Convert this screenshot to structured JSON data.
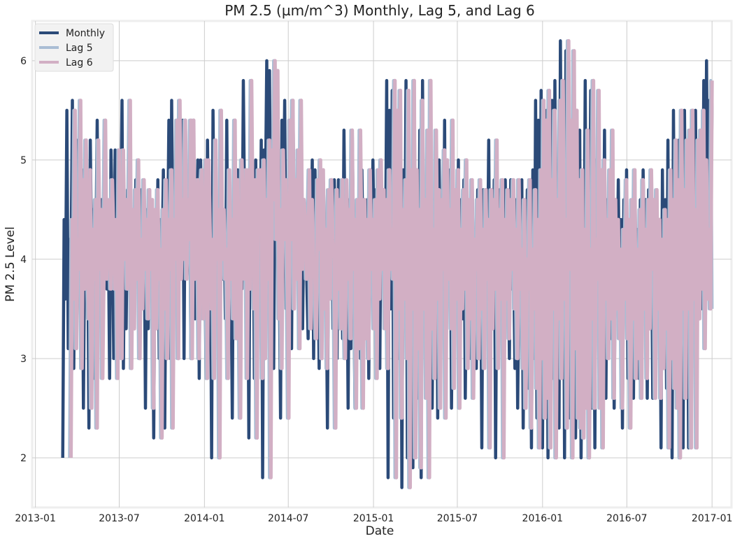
{
  "chart_data": {
    "type": "line",
    "title": "PM 2.5 (µm/m^3) Monthly, Lag 5, and Lag 6",
    "xlabel": "Date",
    "ylabel": "PM 2.5 Level",
    "xlim": [
      "2012-12-25",
      "2017-02-12"
    ],
    "ylim": [
      1.5,
      6.4
    ],
    "x_ticks": [
      {
        "date": "2013-01-01",
        "label": "2013-01"
      },
      {
        "date": "2013-07-01",
        "label": "2013-07"
      },
      {
        "date": "2014-01-01",
        "label": "2014-01"
      },
      {
        "date": "2014-07-01",
        "label": "2014-07"
      },
      {
        "date": "2015-01-01",
        "label": "2015-01"
      },
      {
        "date": "2015-07-01",
        "label": "2015-07"
      },
      {
        "date": "2016-01-01",
        "label": "2016-01"
      },
      {
        "date": "2016-07-01",
        "label": "2016-07"
      },
      {
        "date": "2017-01-01",
        "label": "2017-01"
      }
    ],
    "y_ticks": [
      {
        "value": 2,
        "label": "2"
      },
      {
        "value": 3,
        "label": "3"
      },
      {
        "value": 4,
        "label": "4"
      },
      {
        "value": 5,
        "label": "5"
      },
      {
        "value": 6,
        "label": "6"
      }
    ],
    "grid": true,
    "legend_position": "top-left",
    "x_start": "2013-03-01",
    "x_end": "2017-01-01",
    "x_step_days": 1,
    "series_note_lag": [
      0,
      5,
      6
    ],
    "monthly_values": [
      2.0,
      4.4,
      3.6,
      5.5,
      3.1,
      4.2,
      3.9,
      5.6,
      2.9,
      4.8,
      3.7,
      5.2,
      4.1,
      3.4,
      4.9,
      2.5,
      4.3,
      3.8,
      4.6,
      2.3,
      5.2,
      3.9,
      4.5,
      2.8,
      4.0,
      5.4,
      3.8,
      4.3,
      4.6,
      3.7,
      4.8,
      4.2,
      3.7,
      4.4,
      2.8,
      5.1,
      4.4,
      3.0,
      5.1,
      4.0,
      4.6,
      3.7,
      4.3,
      5.6,
      2.9,
      4.5,
      3.3,
      4.7,
      3.8,
      5.0,
      3.0,
      4.2,
      3.5,
      4.8,
      3.9,
      4.4,
      3.4,
      4.7,
      3.9,
      4.6,
      2.5,
      4.5,
      3.3,
      4.7,
      3.8,
      4.1,
      2.2,
      4.5,
      3.5,
      4.8,
      3.0,
      4.4,
      3.9,
      4.9,
      2.3,
      4.4,
      4.0,
      5.4,
      3.0,
      5.6,
      3.8,
      4.6,
      4.0,
      5.4,
      3.8,
      4.6,
      4.2,
      5.4,
      3.0,
      5.4,
      3.8,
      4.2,
      4.8,
      3.0,
      4.6,
      4.9,
      3.4,
      4.2,
      5.0,
      2.8,
      5.0,
      4.2,
      3.5,
      4.2,
      2.8,
      5.2,
      4.0,
      4.5,
      2.0,
      5.5,
      4.0,
      4.5,
      3.8,
      4.1,
      2.8,
      4.9,
      3.8,
      4.4,
      3.4,
      5.4,
      3.2,
      4.8,
      4.0,
      2.4,
      5.0,
      4.4,
      3.8,
      4.9,
      2.8,
      4.9,
      3.7,
      5.8,
      4.3,
      3.5,
      4.8,
      2.2,
      4.9,
      4.3,
      4.9,
      2.8,
      5.0,
      3.0,
      4.6,
      3.8,
      5.2,
      1.8,
      5.1,
      4.6,
      6.0,
      4.2,
      5.9,
      3.4,
      4.5,
      2.9,
      5.1,
      4.2,
      4.8,
      4.0,
      2.4,
      5.4,
      4.2,
      5.6,
      3.5,
      4.8,
      3.8,
      5.1,
      3.1,
      5.6,
      3.9,
      4.6,
      4.4,
      3.8,
      4.2,
      4.9,
      3.3,
      4.6,
      4.0,
      3.8,
      3.2,
      4.8,
      4.1,
      5.0,
      3.0,
      4.9,
      3.5,
      4.3,
      2.9,
      4.7,
      3.6,
      4.8,
      4.2,
      4.0,
      2.3,
      4.7,
      3.7,
      4.6,
      3.3,
      4.8,
      3.9,
      3.0,
      4.8,
      3.8,
      4.5,
      3.2,
      5.3,
      3.9,
      4.4,
      2.5,
      4.6,
      3.1,
      5.3,
      4.0,
      2.5,
      4.6,
      3.2,
      4.4,
      3.0,
      4.9,
      3.9,
      4.4,
      3.3,
      4.6,
      2.8,
      4.9,
      3.6,
      5.0,
      3.9,
      4.7,
      3.3,
      4.6,
      2.9,
      4.9,
      3.9,
      4.3,
      3.8,
      5.8,
      1.8,
      5.5,
      3.5,
      5.7,
      2.4,
      4.5,
      3.6,
      4.8,
      3.0,
      5.7,
      1.7,
      4.9,
      3.5,
      5.8,
      2.0,
      4.9,
      3.1,
      4.5,
      1.9,
      5.6,
      3.5,
      4.6,
      2.6,
      5.3,
      1.8,
      5.8,
      3.3,
      4.3,
      2.8,
      5.3,
      3.6,
      4.7,
      2.5,
      4.6,
      3.9,
      5.1,
      2.4,
      5.0,
      3.8,
      4.5,
      3.3,
      5.4,
      2.7,
      4.7,
      3.6,
      4.9,
      2.5,
      4.3,
      3.5,
      4.7,
      3.7,
      5.0,
      2.9,
      4.6,
      3.4,
      4.8,
      2.6,
      4.2,
      3.9,
      4.6,
      3.0,
      4.8,
      3.5,
      4.3,
      2.9,
      4.7,
      3.8,
      4.4,
      2.1,
      4.7,
      3.3,
      4.6,
      3.7,
      5.2,
      2.9,
      4.5,
      3.6,
      4.8,
      2.0,
      4.4,
      3.6,
      4.7,
      3.2,
      4.6,
      3.9,
      4.8,
      3.5,
      4.3,
      3.0,
      4.8,
      3.7,
      4.1,
      2.9,
      4.6,
      2.5,
      4.0,
      3.7,
      4.8,
      2.3,
      4.1,
      3.5,
      4.7,
      2.7,
      4.4,
      2.1,
      4.9,
      3.0,
      5.6,
      2.4,
      5.4,
      2.6,
      5.7,
      2.1,
      4.8,
      3.5,
      5.5,
      2.0,
      4.6,
      3.4,
      5.6,
      2.8,
      5.8,
      3.6,
      4.4,
      2.3,
      6.2,
      3.9,
      5.4,
      2.0,
      6.1,
      3.1,
      5.5,
      2.4,
      4.8,
      2.3,
      4.9,
      2.2,
      4.3,
      2.5,
      5.3,
      2.0,
      4.1,
      3.4,
      5.8,
      2.5,
      4.2,
      3.8,
      5.7,
      2.5,
      4.9,
      2.1,
      5.0,
      3.6,
      4.4,
      3.0,
      4.9,
      3.4,
      5.3,
      2.6,
      4.6,
      3.5,
      4.4,
      3.2,
      4.1,
      2.5,
      4.3,
      3.6,
      4.8,
      3.2,
      4.4,
      2.3,
      4.6,
      3.4,
      4.9,
      2.8,
      4.1,
      3.0,
      4.5,
      2.6,
      4.8,
      3.5,
      4.3,
      2.8,
      4.6,
      3.3,
      4.9,
      3.9,
      4.6,
      2.6,
      4.7,
      3.5,
      4.4,
      2.6,
      4.2,
      2.9,
      4.5,
      3.3,
      4.4,
      2.1,
      4.9,
      3.0,
      4.6,
      2.7,
      5.2,
      2.5,
      4.8,
      2.0,
      5.5,
      3.5,
      4.7,
      2.6,
      5.2,
      3.5,
      5.3,
      2.1,
      5.5,
      3.6,
      4.5,
      2.1,
      5.2,
      3.4,
      5.3,
      3.7,
      5.5,
      3.1,
      5.0,
      3.6,
      4.3,
      3.5,
      5.8,
      3.5,
      6.0,
      3.8,
      5.6,
      4.2,
      5.6
    ],
    "series": [
      {
        "name": "Monthly",
        "lag": 0,
        "color": "#2b4a78"
      },
      {
        "name": "Lag 5",
        "lag": 5,
        "color": "#a9bdd4"
      },
      {
        "name": "Lag 6",
        "lag": 6,
        "color": "#d2afc4"
      }
    ]
  }
}
